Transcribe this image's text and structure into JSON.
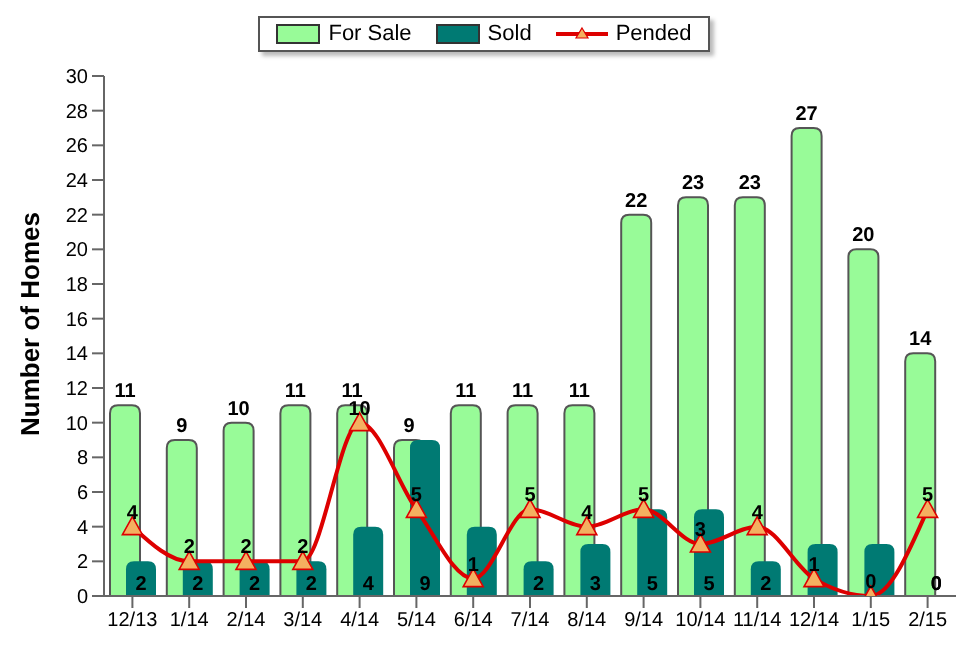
{
  "chart_data": {
    "type": "bar",
    "ylabel": "Number of Homes",
    "categories": [
      "12/13",
      "1/14",
      "2/14",
      "3/14",
      "4/14",
      "5/14",
      "6/14",
      "7/14",
      "8/14",
      "9/14",
      "10/14",
      "11/14",
      "12/14",
      "1/15",
      "2/15"
    ],
    "series": [
      {
        "name": "For Sale",
        "color": "#98fb98",
        "values": [
          11,
          9,
          10,
          11,
          11,
          9,
          11,
          11,
          11,
          22,
          23,
          23,
          27,
          20,
          14
        ],
        "value_labels": [
          "11",
          "9",
          "10",
          "11",
          "11",
          "9",
          "11",
          "11",
          "11",
          "22",
          "23",
          "23",
          "27",
          "20",
          "14"
        ]
      },
      {
        "name": "Sold",
        "color": "#007a73",
        "values": [
          2,
          2,
          2,
          2,
          4,
          9,
          4,
          2,
          3,
          5,
          5,
          2,
          3,
          3,
          0
        ],
        "value_labels": [
          "2",
          "2",
          "2",
          "2",
          "4",
          "9",
          null,
          "2",
          "3",
          "5",
          "5",
          "2",
          null,
          null,
          "0"
        ]
      },
      {
        "name": "Pended",
        "type": "line",
        "color": "#dd0000",
        "values": [
          4,
          2,
          2,
          2,
          10,
          5,
          1,
          5,
          4,
          5,
          3,
          4,
          1,
          0,
          5
        ],
        "value_labels": [
          "4",
          "2",
          "2",
          "2",
          "10",
          "5",
          "1",
          "5",
          "4",
          "5",
          "3",
          "4",
          "1",
          "0",
          "5"
        ]
      }
    ],
    "ylim": [
      0,
      30
    ],
    "yticks": [
      0,
      2,
      4,
      6,
      8,
      10,
      12,
      14,
      16,
      18,
      20,
      22,
      24,
      26,
      28,
      30
    ],
    "legend": "top",
    "marker": "triangle"
  }
}
